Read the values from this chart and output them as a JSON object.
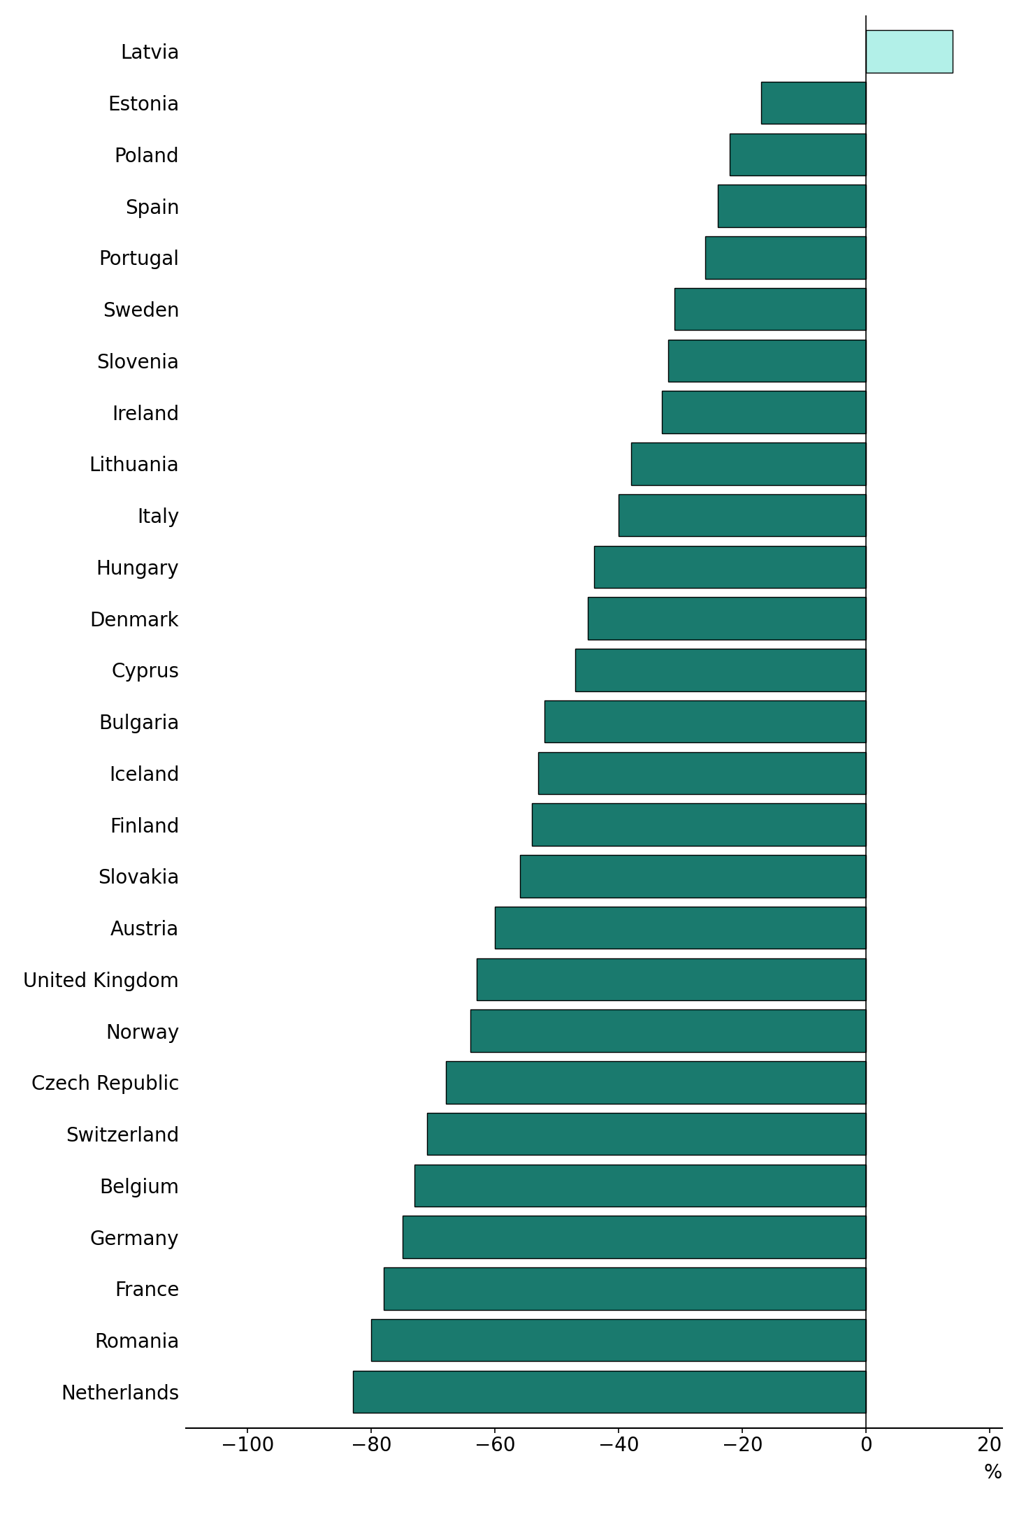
{
  "countries": [
    "Latvia",
    "Estonia",
    "Poland",
    "Spain",
    "Portugal",
    "Sweden",
    "Slovenia",
    "Ireland",
    "Lithuania",
    "Italy",
    "Hungary",
    "Denmark",
    "Cyprus",
    "Bulgaria",
    "Iceland",
    "Finland",
    "Slovakia",
    "Austria",
    "United Kingdom",
    "Norway",
    "Czech Republic",
    "Switzerland",
    "Belgium",
    "Germany",
    "France",
    "Romania",
    "Netherlands"
  ],
  "values": [
    14,
    -17,
    -22,
    -24,
    -26,
    -31,
    -32,
    -33,
    -38,
    -40,
    -44,
    -45,
    -47,
    -52,
    -53,
    -54,
    -56,
    -60,
    -63,
    -64,
    -68,
    -71,
    -73,
    -75,
    -78,
    -80,
    -83
  ],
  "bar_color_positive": "#b2f0e8",
  "bar_color_negative": "#1a7a6e",
  "bar_edgecolor": "#000000",
  "xlim": [
    -110,
    22
  ],
  "xticks": [
    -100,
    -80,
    -60,
    -40,
    -20,
    0,
    20
  ],
  "xtick_labels": [
    "−100",
    "−80",
    "−60",
    "−40",
    "−20",
    "0",
    "20"
  ],
  "xlabel": "%",
  "figsize": [
    14.78,
    21.73
  ],
  "dpi": 100,
  "bar_height": 0.82,
  "spine_color": "#000000",
  "tick_fontsize": 20,
  "label_fontsize": 20,
  "xlabel_fontsize": 20
}
